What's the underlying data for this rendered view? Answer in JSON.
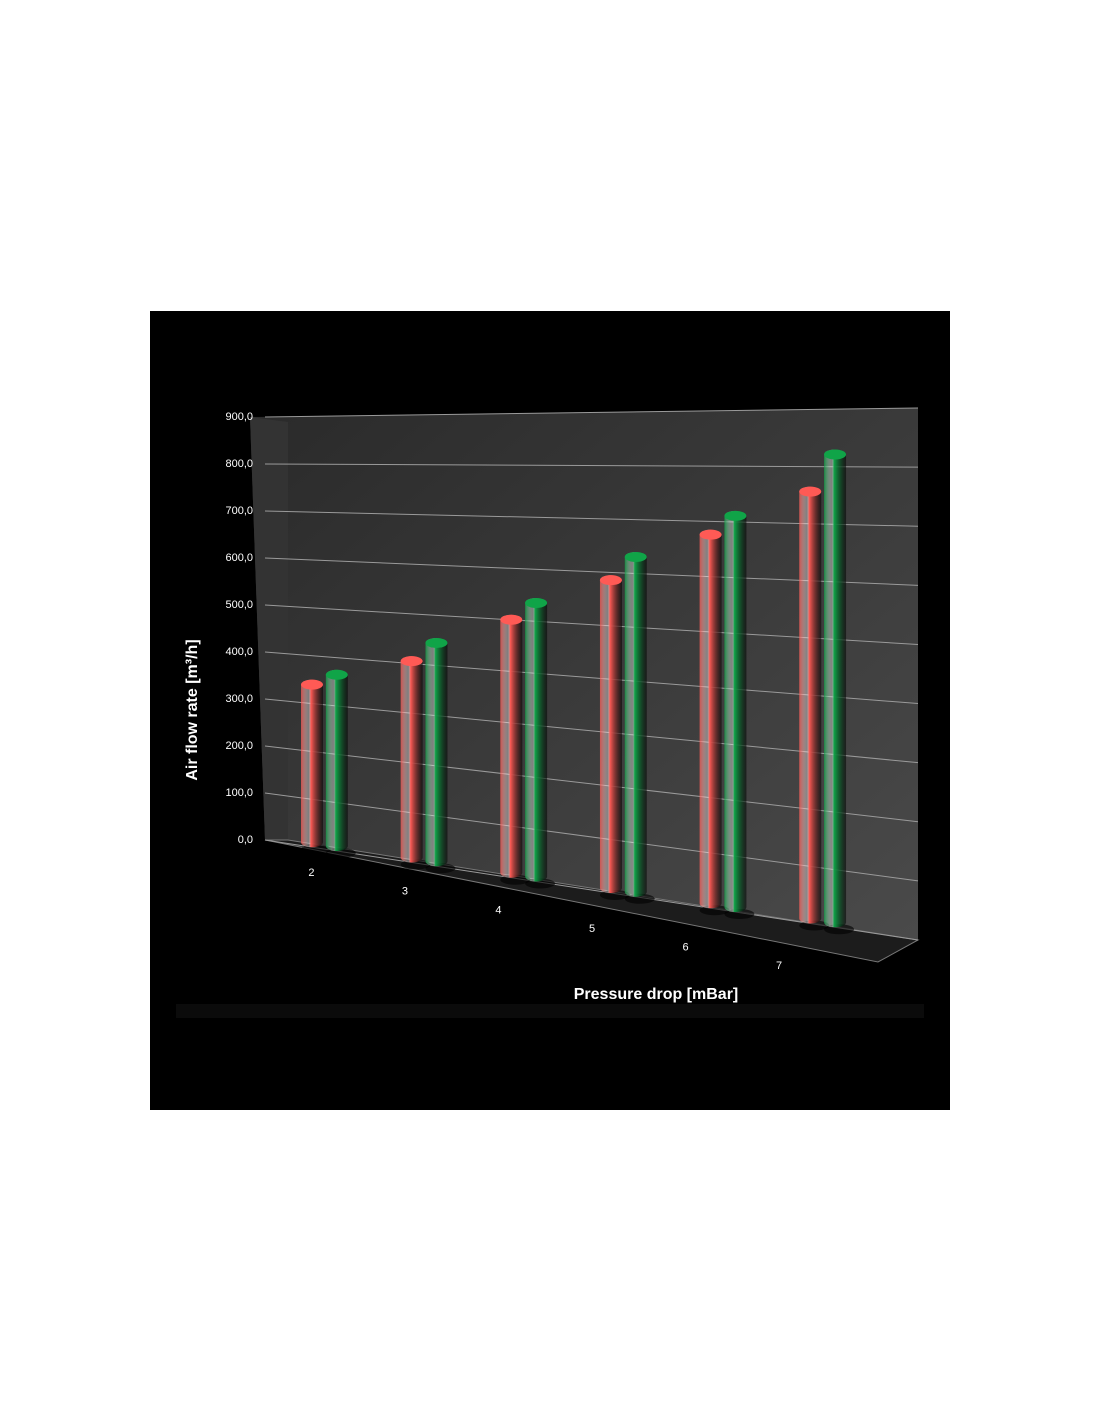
{
  "chart_data": {
    "type": "bar",
    "x_label": "Pressure drop [mBar]",
    "y_label": "Air flow rate [m³/h]",
    "categories": [
      "2",
      "3",
      "4",
      "5",
      "6",
      "7"
    ],
    "series": [
      {
        "color": "#ff5a55",
        "values": [
          350,
          415,
          510,
          595,
          685,
          765
        ]
      },
      {
        "color": "#10a448",
        "values": [
          375,
          455,
          545,
          640,
          720,
          830
        ]
      }
    ],
    "ylim": [
      0,
      900
    ],
    "yticks": [
      {
        "value": 0,
        "label": "0,0"
      },
      {
        "value": 100,
        "label": "100,0"
      },
      {
        "value": 200,
        "label": "200,0"
      },
      {
        "value": 300,
        "label": "300,0"
      },
      {
        "value": 400,
        "label": "400,0"
      },
      {
        "value": 500,
        "label": "500,0"
      },
      {
        "value": 600,
        "label": "600,0"
      },
      {
        "value": 700,
        "label": "700,0"
      },
      {
        "value": 800,
        "label": "800,0"
      },
      {
        "value": 900,
        "label": "900,0"
      }
    ],
    "grid": true
  }
}
